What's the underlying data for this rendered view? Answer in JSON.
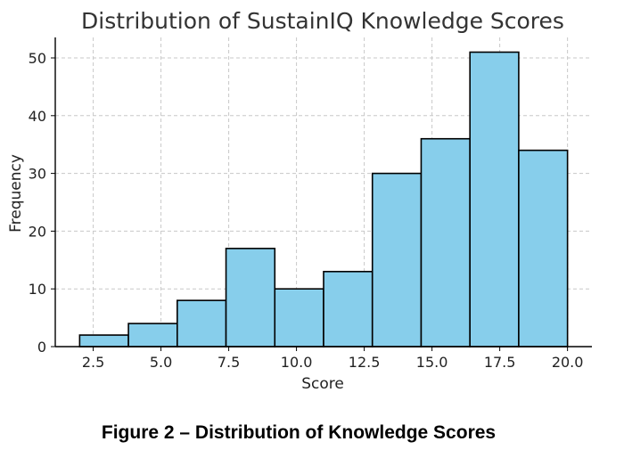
{
  "chart_data": {
    "type": "bar",
    "title": "Distribution of SustainIQ Knowledge Scores",
    "xlabel": "Score",
    "ylabel": "Frequency",
    "bin_edges": [
      2.0,
      3.8,
      5.6,
      7.4,
      9.2,
      11.0,
      12.8,
      14.6,
      16.4,
      18.2,
      20.0
    ],
    "values": [
      2,
      4,
      8,
      17,
      10,
      13,
      30,
      36,
      51,
      34
    ],
    "xlim": [
      1.1,
      20.9
    ],
    "ylim": [
      0,
      53.55
    ],
    "xticks": [
      2.5,
      5.0,
      7.5,
      10.0,
      12.5,
      15.0,
      17.5,
      20.0
    ],
    "xtick_labels": [
      "2.5",
      "5.0",
      "7.5",
      "10.0",
      "12.5",
      "15.0",
      "17.5",
      "20.0"
    ],
    "yticks": [
      0,
      10,
      20,
      30,
      40,
      50
    ],
    "ytick_labels": [
      "0",
      "10",
      "20",
      "30",
      "40",
      "50"
    ],
    "grid": true,
    "legend": "none",
    "colors": {
      "bar_fill": "#87ceeb",
      "bar_edge": "#000000",
      "grid": "#c8c8c8",
      "axis": "#000000"
    }
  },
  "caption": "Figure 2 – Distribution of Knowledge Scores"
}
